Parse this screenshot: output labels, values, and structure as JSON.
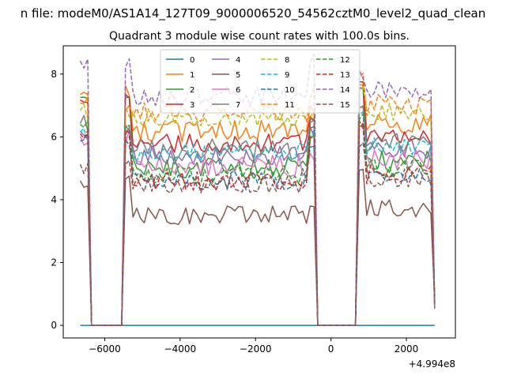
{
  "chart_data": {
    "type": "line",
    "suptitle": "n file: modeM0/AS1A14_127T09_9000006520_54562cztM0_level2_quad_clean",
    "title": "Quadrant 3 module wise count rates with 100.0s bins.",
    "xlabel": "",
    "ylabel": "",
    "x_offset_label": "+4.994e8",
    "xlim": [
      -7100,
      3300
    ],
    "ylim": [
      -0.4,
      8.9
    ],
    "x_ticks": [
      -6000,
      -4000,
      -2000,
      0,
      2000
    ],
    "x_tick_labels": [
      "−6000",
      "−4000",
      "−2000",
      "0",
      "2000"
    ],
    "y_ticks": [
      0,
      2,
      4,
      6,
      8
    ],
    "y_tick_labels": [
      "0",
      "2",
      "4",
      "6",
      "8"
    ],
    "grid": false,
    "legend_position": "upper-center",
    "legend_columns": 4,
    "segments": [
      {
        "start": -6650,
        "end": -6450,
        "step": 100
      },
      {
        "start": -5450,
        "end": -450,
        "step": 100
      },
      {
        "start": 750,
        "end": 2750,
        "step": 100
      }
    ],
    "gaps": [
      {
        "start": -6350,
        "end": -5550,
        "value": 0
      },
      {
        "start": -350,
        "end": 650,
        "value": 0
      }
    ],
    "series": [
      {
        "name": "0",
        "color": "#1f77b4",
        "dash": "solid",
        "level": 0,
        "spread": 0,
        "edge": [
          0,
          0,
          0
        ]
      },
      {
        "name": "1",
        "color": "#ff7f0e",
        "dash": "solid",
        "level": 6.2,
        "spread": 0.35,
        "edge": [
          7.4,
          6.9,
          7.5
        ]
      },
      {
        "name": "2",
        "color": "#2ca02c",
        "dash": "solid",
        "level": 5.0,
        "spread": 0.35,
        "edge": [
          7.3,
          6.5,
          7.4
        ]
      },
      {
        "name": "3",
        "color": "#d62728",
        "dash": "solid",
        "level": 5.8,
        "spread": 0.3,
        "edge": [
          7.2,
          6.7,
          7.6
        ]
      },
      {
        "name": "4",
        "color": "#9467bd",
        "dash": "solid",
        "level": 5.4,
        "spread": 0.3,
        "edge": [
          6.2,
          6.2,
          6.8
        ]
      },
      {
        "name": "5",
        "color": "#8c564b",
        "dash": "solid",
        "level": 3.5,
        "spread": 0.3,
        "edge": [
          4.6,
          4.0,
          4.8
        ]
      },
      {
        "name": "6",
        "color": "#e377c2",
        "dash": "solid",
        "level": 5.1,
        "spread": 0.35,
        "edge": [
          6.0,
          5.5,
          6.2
        ]
      },
      {
        "name": "7",
        "color": "#7f7f7f",
        "dash": "solid",
        "level": 5.6,
        "spread": 0.35,
        "edge": [
          6.4,
          6.3,
          6.8
        ]
      },
      {
        "name": "8",
        "color": "#bcbd22",
        "dash": "dashed",
        "level": 6.6,
        "spread": 0.3,
        "edge": [
          6.8,
          6.7,
          7.4
        ]
      },
      {
        "name": "9",
        "color": "#17becf",
        "dash": "dashed",
        "level": 5.5,
        "spread": 0.3,
        "edge": [
          6.1,
          6.0,
          6.6
        ]
      },
      {
        "name": "10",
        "color": "#1f77b4",
        "dash": "dashed",
        "level": 4.6,
        "spread": 0.3,
        "edge": [
          5.8,
          5.5,
          5.6
        ]
      },
      {
        "name": "11",
        "color": "#ff7f0e",
        "dash": "dashed",
        "level": 6.8,
        "spread": 0.35,
        "edge": [
          7.0,
          7.4,
          7.8
        ]
      },
      {
        "name": "12",
        "color": "#2ca02c",
        "dash": "dashed",
        "level": 4.8,
        "spread": 0.3,
        "edge": [
          6.3,
          5.9,
          6.5
        ]
      },
      {
        "name": "13",
        "color": "#d62728",
        "dash": "dashed",
        "level": 4.6,
        "spread": 0.3,
        "edge": [
          6.0,
          5.8,
          6.2
        ]
      },
      {
        "name": "14",
        "color": "#9467bd",
        "dash": "dashed",
        "level": 7.3,
        "spread": 0.3,
        "edge": [
          8.3,
          8.5,
          8.1
        ]
      },
      {
        "name": "15",
        "color": "#8c564b",
        "dash": "dashed",
        "level": 4.5,
        "spread": 0.3,
        "edge": [
          5.0,
          6.5,
          6.5
        ]
      }
    ]
  }
}
